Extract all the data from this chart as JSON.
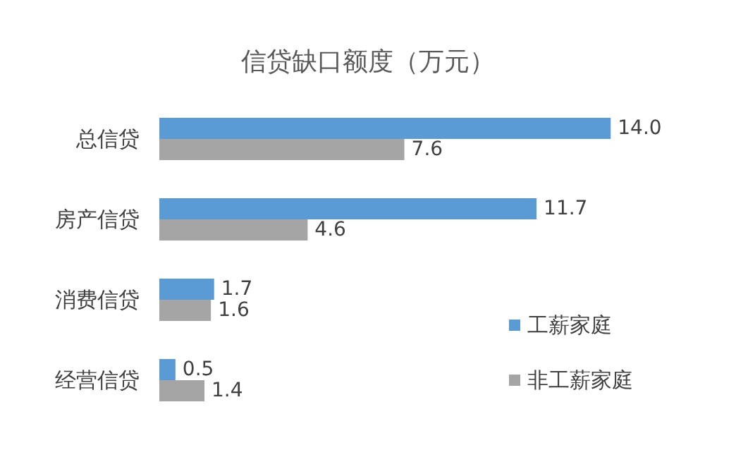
{
  "chart_data": {
    "type": "bar",
    "orientation": "horizontal",
    "title": "信贷缺口额度（万元）",
    "categories": [
      "总信贷",
      "房产信贷",
      "消费信贷",
      "经营信贷"
    ],
    "series": [
      {
        "name": "工薪家庭",
        "color": "#5b9bd5",
        "values": [
          14.0,
          11.7,
          1.7,
          0.5
        ],
        "value_labels": [
          "14.0",
          "11.7",
          "1.7",
          "0.5"
        ]
      },
      {
        "name": "非工薪家庭",
        "color": "#a5a5a5",
        "values": [
          7.6,
          4.6,
          1.6,
          1.4
        ],
        "value_labels": [
          "7.6",
          "4.6",
          "1.6",
          "1.4"
        ]
      }
    ],
    "legend": "right"
  }
}
